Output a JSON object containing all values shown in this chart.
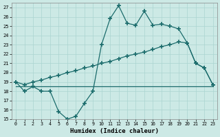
{
  "xlabel": "Humidex (Indice chaleur)",
  "xlim": [
    -0.5,
    23.5
  ],
  "ylim": [
    15,
    27.5
  ],
  "yticks": [
    15,
    16,
    17,
    18,
    19,
    20,
    21,
    22,
    23,
    24,
    25,
    26,
    27
  ],
  "xticks": [
    0,
    1,
    2,
    3,
    4,
    5,
    6,
    7,
    8,
    9,
    10,
    11,
    12,
    13,
    14,
    15,
    16,
    17,
    18,
    19,
    20,
    21,
    22,
    23
  ],
  "bg_color": "#cce9e5",
  "grid_color": "#aad4d0",
  "line_color": "#1a6b6b",
  "line1_x": [
    0,
    1,
    2,
    3,
    4,
    5,
    6,
    7,
    8,
    9,
    10,
    11,
    12,
    13,
    14,
    15,
    16,
    17,
    18,
    19,
    20,
    21,
    22,
    23
  ],
  "line1_y": [
    19,
    18,
    18.5,
    18,
    18,
    15.8,
    15,
    15.3,
    16.7,
    18.0,
    23.0,
    25.8,
    27.2,
    25.3,
    25.1,
    26.6,
    25.1,
    25.2,
    25.0,
    24.7,
    23.2,
    21.0,
    20.5,
    18.7
  ],
  "line2_x": [
    0,
    3,
    10,
    11,
    12,
    13,
    14,
    15,
    16,
    17,
    18,
    19,
    20,
    21,
    22,
    23
  ],
  "line2_y": [
    18.5,
    18.5,
    18.5,
    18.5,
    18.5,
    18.5,
    18.5,
    18.5,
    18.5,
    18.5,
    18.5,
    18.5,
    18.5,
    18.5,
    18.5,
    18.5
  ],
  "line3_x": [
    0,
    1,
    2,
    3,
    4,
    5,
    6,
    7,
    8,
    9,
    10,
    11,
    12,
    13,
    14,
    15,
    16,
    17,
    18,
    19,
    20,
    21,
    22,
    23
  ],
  "line3_y": [
    19.0,
    18.7,
    19.0,
    19.2,
    19.5,
    19.7,
    20.0,
    20.2,
    20.5,
    20.7,
    21.0,
    21.2,
    21.5,
    21.8,
    22.0,
    22.2,
    22.5,
    22.8,
    23.0,
    23.3,
    23.2,
    21.0,
    20.5,
    18.7
  ]
}
